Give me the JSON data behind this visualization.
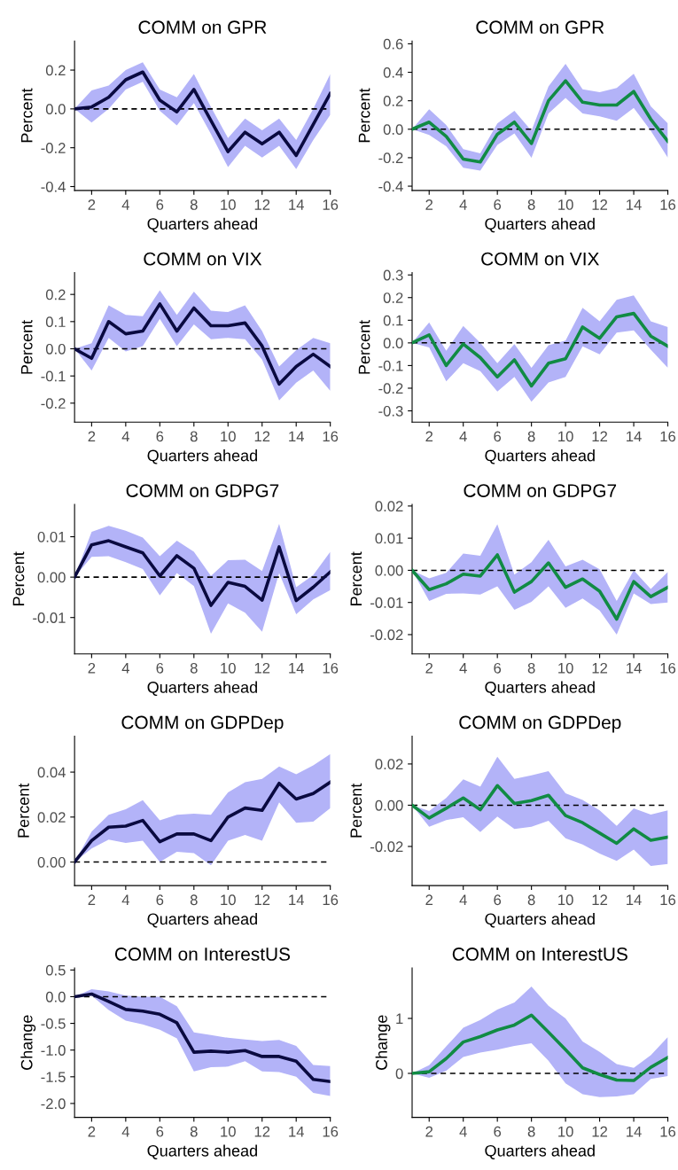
{
  "chart_data": [
    {
      "type": "line",
      "title": "COMM on GPR",
      "xlabel": "Quarters ahead",
      "ylabel": "Percent",
      "x": [
        1,
        2,
        3,
        4,
        5,
        6,
        7,
        8,
        9,
        10,
        11,
        12,
        13,
        14,
        15,
        16
      ],
      "xlim": [
        1,
        16
      ],
      "xticks": [
        2,
        4,
        6,
        8,
        10,
        12,
        14,
        16
      ],
      "ylim": [
        -0.42,
        0.35
      ],
      "yticks": [
        -0.4,
        -0.2,
        {
          "value": 0,
          "label": "0.0"
        },
        0.2
      ],
      "grid": false,
      "legend": false,
      "series": [
        {
          "color": "#0a0a40",
          "values": [
            0,
            0.01,
            0.06,
            0.15,
            0.19,
            0.045,
            -0.015,
            0.1,
            -0.06,
            -0.22,
            -0.12,
            -0.18,
            -0.12,
            -0.24,
            -0.08,
            0.08
          ],
          "lower": [
            0,
            -0.07,
            0.0,
            0.1,
            0.14,
            -0.01,
            -0.085,
            0.03,
            -0.13,
            -0.3,
            -0.19,
            -0.25,
            -0.19,
            -0.31,
            -0.16,
            -0.03
          ],
          "upper": [
            0,
            0.095,
            0.12,
            0.2,
            0.24,
            0.1,
            0.06,
            0.18,
            0.01,
            -0.15,
            -0.05,
            -0.11,
            -0.05,
            -0.16,
            0.0,
            0.18
          ]
        }
      ],
      "ref_lines": [
        {
          "axis": "y",
          "value": 0,
          "color": "#000000",
          "line_style": "dashed"
        }
      ]
    },
    {
      "type": "line",
      "title": "COMM on GPR",
      "xlabel": "Quarters ahead",
      "ylabel": "Percent",
      "x": [
        1,
        2,
        3,
        4,
        5,
        6,
        7,
        8,
        9,
        10,
        11,
        12,
        13,
        14,
        15,
        16
      ],
      "xlim": [
        1,
        16
      ],
      "xticks": [
        2,
        4,
        6,
        8,
        10,
        12,
        14,
        16
      ],
      "ylim": [
        -0.43,
        0.62
      ],
      "yticks": [
        -0.4,
        -0.2,
        {
          "value": 0,
          "label": "0.0"
        },
        0.2,
        0.4,
        0.6
      ],
      "grid": false,
      "legend": false,
      "series": [
        {
          "color": "#118b44",
          "values": [
            0,
            0.05,
            -0.05,
            -0.21,
            -0.23,
            -0.035,
            0.05,
            -0.1,
            0.2,
            0.34,
            0.19,
            0.17,
            0.17,
            0.265,
            0.07,
            -0.085
          ],
          "lower": [
            0,
            -0.04,
            -0.12,
            -0.27,
            -0.29,
            -0.11,
            -0.03,
            -0.2,
            0.11,
            0.22,
            0.11,
            0.09,
            0.06,
            0.15,
            -0.01,
            -0.2
          ],
          "upper": [
            0,
            0.14,
            0.03,
            -0.14,
            -0.17,
            0.04,
            0.13,
            -0.01,
            0.3,
            0.46,
            0.28,
            0.26,
            0.29,
            0.39,
            0.16,
            0.04
          ]
        }
      ],
      "ref_lines": [
        {
          "axis": "y",
          "value": 0,
          "color": "#000000",
          "line_style": "dashed"
        }
      ]
    },
    {
      "type": "line",
      "title": "COMM on VIX",
      "xlabel": "Quarters ahead",
      "ylabel": "Percent",
      "x": [
        1,
        2,
        3,
        4,
        5,
        6,
        7,
        8,
        9,
        10,
        11,
        12,
        13,
        14,
        15,
        16
      ],
      "xlim": [
        1,
        16
      ],
      "xticks": [
        2,
        4,
        6,
        8,
        10,
        12,
        14,
        16
      ],
      "ylim": [
        -0.27,
        0.28
      ],
      "yticks": [
        -0.2,
        -0.1,
        {
          "value": 0,
          "label": "0.0"
        },
        0.1,
        0.2
      ],
      "grid": false,
      "legend": false,
      "series": [
        {
          "color": "#0a0a40",
          "values": [
            0,
            -0.035,
            0.1,
            0.055,
            0.065,
            0.165,
            0.065,
            0.15,
            0.085,
            0.085,
            0.095,
            0.01,
            -0.13,
            -0.065,
            -0.02,
            -0.065
          ],
          "lower": [
            0,
            -0.08,
            0.04,
            -0.01,
            0.01,
            0.11,
            0.01,
            0.09,
            0.035,
            0.04,
            0.035,
            -0.04,
            -0.19,
            -0.125,
            -0.08,
            -0.155
          ],
          "upper": [
            0,
            0.02,
            0.16,
            0.125,
            0.12,
            0.215,
            0.125,
            0.21,
            0.14,
            0.135,
            0.16,
            0.065,
            -0.065,
            -0.005,
            0.04,
            0.02
          ]
        }
      ],
      "ref_lines": [
        {
          "axis": "y",
          "value": 0,
          "color": "#000000",
          "line_style": "dashed"
        }
      ]
    },
    {
      "type": "line",
      "title": "COMM on VIX",
      "xlabel": "Quarters ahead",
      "ylabel": "Percent",
      "x": [
        1,
        2,
        3,
        4,
        5,
        6,
        7,
        8,
        9,
        10,
        11,
        12,
        13,
        14,
        15,
        16
      ],
      "xlim": [
        1,
        16
      ],
      "xticks": [
        2,
        4,
        6,
        8,
        10,
        12,
        14,
        16
      ],
      "ylim": [
        -0.35,
        0.31
      ],
      "yticks": [
        -0.3,
        -0.2,
        -0.1,
        {
          "value": 0,
          "label": "0.0"
        },
        0.1,
        0.2,
        0.3
      ],
      "grid": false,
      "legend": false,
      "series": [
        {
          "color": "#118b44",
          "values": [
            0,
            0.035,
            -0.1,
            -0.005,
            -0.065,
            -0.15,
            -0.075,
            -0.19,
            -0.09,
            -0.07,
            0.07,
            0.02,
            0.115,
            0.13,
            0.03,
            -0.015
          ],
          "lower": [
            0,
            -0.02,
            -0.17,
            -0.09,
            -0.125,
            -0.215,
            -0.15,
            -0.26,
            -0.175,
            -0.15,
            -0.015,
            -0.05,
            0.045,
            0.055,
            -0.03,
            -0.11
          ],
          "upper": [
            0,
            0.09,
            -0.035,
            0.075,
            0.0,
            -0.09,
            -0.005,
            -0.11,
            -0.01,
            0.01,
            0.155,
            0.095,
            0.19,
            0.21,
            0.095,
            0.07
          ]
        }
      ],
      "ref_lines": [
        {
          "axis": "y",
          "value": 0,
          "color": "#000000",
          "line_style": "dashed"
        }
      ]
    },
    {
      "type": "line",
      "title": "COMM on GDPG7",
      "xlabel": "Quarters ahead",
      "ylabel": "Percent",
      "x": [
        1,
        2,
        3,
        4,
        5,
        6,
        7,
        8,
        9,
        10,
        11,
        12,
        13,
        14,
        15,
        16
      ],
      "xlim": [
        1,
        16
      ],
      "xticks": [
        2,
        4,
        6,
        8,
        10,
        12,
        14,
        16
      ],
      "ylim": [
        -0.019,
        0.018
      ],
      "yticks": [
        -0.01,
        {
          "value": 0,
          "label": "0.00"
        },
        0.01
      ],
      "grid": false,
      "legend": false,
      "series": [
        {
          "color": "#0a0a40",
          "values": [
            0,
            0.008,
            0.009,
            0.0075,
            0.006,
            0.0003,
            0.0053,
            0.0022,
            -0.007,
            -0.0013,
            -0.0023,
            -0.0057,
            0.0075,
            -0.0058,
            -0.0025,
            0.0013
          ],
          "lower": [
            0,
            0.005,
            0.0052,
            0.0037,
            0.002,
            -0.0045,
            0.001,
            -0.0022,
            -0.014,
            -0.0065,
            -0.0088,
            -0.0135,
            0.001,
            -0.0092,
            -0.0055,
            -0.0032
          ],
          "upper": [
            0,
            0.0112,
            0.0127,
            0.0115,
            0.0098,
            0.0052,
            0.009,
            0.0063,
            0.0003,
            0.0042,
            0.0043,
            0.0015,
            0.0132,
            -0.0025,
            0.0005,
            0.0063
          ]
        }
      ],
      "ref_lines": [
        {
          "axis": "y",
          "value": 0,
          "color": "#000000",
          "line_style": "dashed"
        }
      ]
    },
    {
      "type": "line",
      "title": "COMM on GDPG7",
      "xlabel": "Quarters ahead",
      "ylabel": "Percent",
      "x": [
        1,
        2,
        3,
        4,
        5,
        6,
        7,
        8,
        9,
        10,
        11,
        12,
        13,
        14,
        15,
        16
      ],
      "xlim": [
        1,
        16
      ],
      "xticks": [
        2,
        4,
        6,
        8,
        10,
        12,
        14,
        16
      ],
      "ylim": [
        -0.026,
        0.0205
      ],
      "yticks": [
        -0.02,
        -0.01,
        {
          "value": 0,
          "label": "0.00"
        },
        0.01,
        0.02
      ],
      "grid": false,
      "legend": false,
      "series": [
        {
          "color": "#118b44",
          "values": [
            0,
            -0.006,
            -0.0042,
            -0.0012,
            -0.0018,
            0.0048,
            -0.0068,
            -0.0035,
            0.0023,
            -0.0053,
            -0.0027,
            -0.0065,
            -0.0152,
            -0.0035,
            -0.0082,
            -0.0053
          ],
          "lower": [
            0,
            -0.0095,
            -0.0073,
            -0.0072,
            -0.0075,
            -0.005,
            -0.0123,
            -0.0098,
            -0.005,
            -0.0117,
            -0.0088,
            -0.0125,
            -0.02,
            -0.0072,
            -0.0105,
            -0.01
          ],
          "upper": [
            0,
            -0.0025,
            -0.0008,
            0.0052,
            0.0045,
            0.0143,
            -0.0013,
            0.0025,
            0.0095,
            0.0012,
            0.0033,
            0.0003,
            -0.0095,
            0.0,
            -0.0058,
            -0.0005
          ]
        }
      ],
      "ref_lines": [
        {
          "axis": "y",
          "value": 0,
          "color": "#000000",
          "line_style": "dashed"
        }
      ]
    },
    {
      "type": "line",
      "title": "COMM on GDPDep",
      "xlabel": "Quarters ahead",
      "ylabel": "Percent",
      "x": [
        1,
        2,
        3,
        4,
        5,
        6,
        7,
        8,
        9,
        10,
        11,
        12,
        13,
        14,
        15,
        16
      ],
      "xlim": [
        1,
        16
      ],
      "xticks": [
        2,
        4,
        6,
        8,
        10,
        12,
        14,
        16
      ],
      "ylim": [
        -0.0105,
        0.056
      ],
      "yticks": [
        {
          "value": 0,
          "label": "0.00"
        },
        {
          "value": 0.02,
          "label": "0.02"
        },
        {
          "value": 0.04,
          "label": "0.04"
        }
      ],
      "grid": false,
      "legend": false,
      "series": [
        {
          "color": "#0a0a40",
          "values": [
            0,
            0.0095,
            0.0155,
            0.016,
            0.0185,
            0.009,
            0.0125,
            0.0125,
            0.0095,
            0.02,
            0.024,
            0.023,
            0.035,
            0.028,
            0.0305,
            0.0355
          ],
          "lower": [
            0,
            0.006,
            0.01,
            0.0085,
            0.0095,
            0.0,
            0.0045,
            0.004,
            -0.0015,
            0.0095,
            0.012,
            0.0095,
            0.0265,
            0.0175,
            0.018,
            0.024
          ],
          "upper": [
            0,
            0.0135,
            0.021,
            0.0235,
            0.0275,
            0.0185,
            0.021,
            0.0215,
            0.021,
            0.031,
            0.0355,
            0.037,
            0.0425,
            0.039,
            0.043,
            0.048
          ]
        }
      ],
      "ref_lines": [
        {
          "axis": "y",
          "value": 0,
          "color": "#000000",
          "line_style": "dashed"
        }
      ]
    },
    {
      "type": "line",
      "title": "COMM on GDPDep",
      "xlabel": "Quarters ahead",
      "ylabel": "Percent",
      "x": [
        1,
        2,
        3,
        4,
        5,
        6,
        7,
        8,
        9,
        10,
        11,
        12,
        13,
        14,
        15,
        16
      ],
      "xlim": [
        1,
        16
      ],
      "xticks": [
        2,
        4,
        6,
        8,
        10,
        12,
        14,
        16
      ],
      "ylim": [
        -0.039,
        0.0335
      ],
      "yticks": [
        -0.02,
        {
          "value": 0,
          "label": "0.00"
        },
        0.02
      ],
      "grid": false,
      "legend": false,
      "series": [
        {
          "color": "#118b44",
          "values": [
            0,
            -0.0062,
            -0.0015,
            0.0035,
            -0.0022,
            0.0095,
            0.0008,
            0.0022,
            0.0048,
            -0.005,
            -0.0085,
            -0.0135,
            -0.0185,
            -0.0115,
            -0.017,
            -0.0155
          ],
          "lower": [
            0,
            -0.0105,
            -0.0072,
            -0.0058,
            -0.013,
            -0.0055,
            -0.0115,
            -0.0105,
            -0.0075,
            -0.016,
            -0.019,
            -0.0235,
            -0.027,
            -0.0215,
            -0.0295,
            -0.0285
          ],
          "upper": [
            0,
            -0.0028,
            0.0035,
            0.0125,
            0.009,
            0.0235,
            0.0128,
            0.0145,
            0.0165,
            0.0058,
            0.0025,
            -0.0025,
            -0.01,
            -0.0015,
            -0.0045,
            -0.0025
          ]
        }
      ],
      "ref_lines": [
        {
          "axis": "y",
          "value": 0,
          "color": "#000000",
          "line_style": "dashed"
        }
      ]
    },
    {
      "type": "line",
      "title": "COMM on InterestUS",
      "xlabel": "Quarters ahead",
      "ylabel": "Change",
      "x": [
        1,
        2,
        3,
        4,
        5,
        6,
        7,
        8,
        9,
        10,
        11,
        12,
        13,
        14,
        15,
        16
      ],
      "xlim": [
        1,
        16
      ],
      "xticks": [
        2,
        4,
        6,
        8,
        10,
        12,
        14,
        16
      ],
      "ylim": [
        -2.26,
        0.54
      ],
      "yticks": [
        {
          "value": -2,
          "label": "-2.0"
        },
        -1.5,
        {
          "value": -1,
          "label": "-1.0"
        },
        -0.5,
        {
          "value": 0,
          "label": "0.0"
        },
        0.5
      ],
      "grid": false,
      "legend": false,
      "series": [
        {
          "color": "#0a0a40",
          "values": [
            0,
            0.05,
            -0.09,
            -0.24,
            -0.27,
            -0.33,
            -0.49,
            -1.04,
            -1.02,
            -1.04,
            -1.01,
            -1.12,
            -1.12,
            -1.21,
            -1.55,
            -1.59
          ],
          "lower": [
            0,
            0.02,
            -0.25,
            -0.45,
            -0.52,
            -0.62,
            -0.78,
            -1.4,
            -1.32,
            -1.31,
            -1.21,
            -1.4,
            -1.41,
            -1.5,
            -1.8,
            -1.86
          ],
          "upper": [
            0,
            0.14,
            0.1,
            0.02,
            0.0,
            0.0,
            -0.18,
            -0.67,
            -0.72,
            -0.77,
            -0.8,
            -0.83,
            -0.81,
            -0.92,
            -1.28,
            -1.3
          ]
        }
      ],
      "ref_lines": [
        {
          "axis": "y",
          "value": 0,
          "color": "#000000",
          "line_style": "dashed"
        }
      ]
    },
    {
      "type": "line",
      "title": "COMM on InterestUS",
      "xlabel": "Quarters ahead",
      "ylabel": "Change",
      "x": [
        1,
        2,
        3,
        4,
        5,
        6,
        7,
        8,
        9,
        10,
        11,
        12,
        13,
        14,
        15,
        16
      ],
      "xlim": [
        1,
        16
      ],
      "xticks": [
        2,
        4,
        6,
        8,
        10,
        12,
        14,
        16
      ],
      "ylim": [
        -0.8,
        1.92
      ],
      "yticks": [
        0,
        1
      ],
      "grid": false,
      "legend": false,
      "series": [
        {
          "color": "#118b44",
          "values": [
            0,
            0.03,
            0.27,
            0.57,
            0.67,
            0.79,
            0.88,
            1.06,
            0.75,
            0.43,
            0.1,
            -0.02,
            -0.12,
            -0.13,
            0.11,
            0.29
          ],
          "lower": [
            0,
            -0.08,
            0.05,
            0.3,
            0.38,
            0.43,
            0.5,
            0.55,
            0.23,
            -0.18,
            -0.38,
            -0.43,
            -0.42,
            -0.38,
            -0.1,
            -0.05
          ],
          "upper": [
            0,
            0.15,
            0.49,
            0.83,
            0.97,
            1.16,
            1.29,
            1.58,
            1.23,
            1.0,
            0.58,
            0.39,
            0.17,
            0.1,
            0.33,
            0.66
          ]
        }
      ],
      "ref_lines": [
        {
          "axis": "y",
          "value": 0,
          "color": "#000000",
          "line_style": "dashed"
        }
      ]
    }
  ]
}
